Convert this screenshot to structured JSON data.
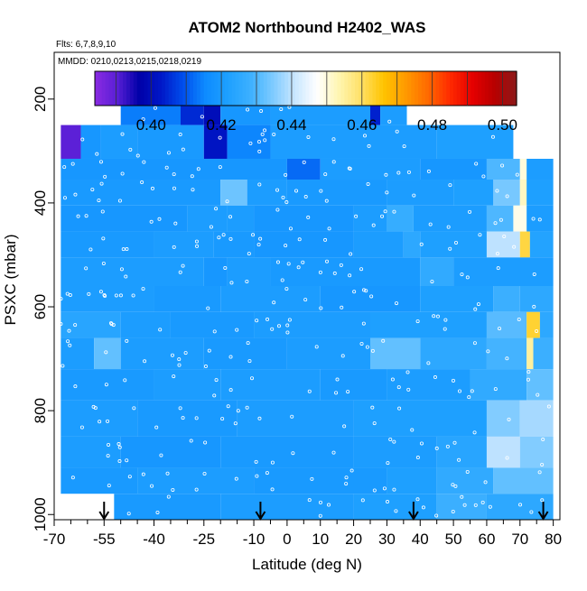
{
  "chart_data": {
    "type": "heatmap",
    "title": "ATOM2 Northbound H2402_WAS",
    "subtitle_flights": "Flts: 6,7,8,9,10",
    "subtitle_dates": "MMDD: 0210,0213,0215,0218,0219",
    "xlabel": "Latitude (deg N)",
    "ylabel": "PSXC (mbar)",
    "xlim": [
      -70,
      82
    ],
    "ylim": [
      1010,
      110
    ],
    "y_reversed": true,
    "x_ticks": [
      -70,
      -55,
      -40,
      -25,
      -10,
      0,
      10,
      20,
      30,
      40,
      50,
      60,
      70,
      80
    ],
    "x_minor_ticks": [
      -65,
      -60,
      -50,
      -45,
      -35,
      -30,
      -20,
      -15,
      -5,
      5,
      15,
      25,
      35,
      45,
      55,
      65,
      75
    ],
    "y_ticks": [
      200,
      400,
      600,
      800,
      1000
    ],
    "colorbar": {
      "min": 0.384,
      "max": 0.504,
      "ticks": [
        0.4,
        0.42,
        0.44,
        0.46,
        0.48,
        0.5
      ],
      "tick_labels": [
        "0.40",
        "0.42",
        "0.44",
        "0.46",
        "0.48",
        "0.50"
      ],
      "colors": [
        "#8a2be2",
        "#5a1fd6",
        "#0000a8",
        "#0018c8",
        "#0050ee",
        "#0e8cff",
        "#1ea0ff",
        "#3cb0ff",
        "#7ccaff",
        "#c8e6ff",
        "#ffffff",
        "#fff5b0",
        "#ffe066",
        "#ffc400",
        "#ff9a00",
        "#ff6a00",
        "#ff2a00",
        "#e60000",
        "#b80000",
        "#8b1a1a"
      ]
    },
    "arrows_latitude": [
      -55,
      -8,
      38,
      77
    ],
    "dominant_value": 0.42,
    "layers": [
      {
        "p": [
          160,
          190
        ],
        "segs": [
          [
            -7.5,
            -5.5,
            0.42
          ]
        ]
      },
      {
        "p": [
          190,
          250
        ],
        "segs": [
          [
            -50,
            -32,
            0.414
          ],
          [
            -32,
            -25,
            0.405
          ],
          [
            -25,
            -20,
            0.4
          ],
          [
            -20,
            -5,
            0.419
          ],
          [
            -5,
            25,
            0.421
          ],
          [
            25,
            28,
            0.404
          ],
          [
            28,
            36,
            0.421
          ]
        ]
      },
      {
        "p": [
          250,
          315
        ],
        "segs": [
          [
            -68,
            -62,
            0.39
          ],
          [
            -62,
            -56,
            0.419
          ],
          [
            -56,
            -45,
            0.421
          ],
          [
            -45,
            -25,
            0.42
          ],
          [
            -25,
            -18,
            0.402
          ],
          [
            -18,
            -5,
            0.415
          ],
          [
            -5,
            45,
            0.421
          ],
          [
            45,
            68,
            0.422
          ]
        ]
      },
      {
        "p": [
          315,
          355
        ],
        "segs": [
          [
            -68,
            0,
            0.419
          ],
          [
            0,
            10,
            0.412
          ],
          [
            10,
            40,
            0.421
          ],
          [
            40,
            60,
            0.419
          ],
          [
            60,
            70,
            0.43
          ],
          [
            70,
            72,
            0.45
          ],
          [
            72,
            80,
            0.421
          ]
        ]
      },
      {
        "p": [
          355,
          405
        ],
        "segs": [
          [
            -68,
            -20,
            0.42
          ],
          [
            -20,
            -12,
            0.433
          ],
          [
            -12,
            0,
            0.421
          ],
          [
            0,
            30,
            0.42
          ],
          [
            30,
            50,
            0.421
          ],
          [
            50,
            62,
            0.422
          ],
          [
            62,
            70,
            0.434
          ],
          [
            70,
            72,
            0.452
          ],
          [
            72,
            80,
            0.422
          ]
        ]
      },
      {
        "p": [
          405,
          455
        ],
        "segs": [
          [
            -68,
            -30,
            0.419
          ],
          [
            -30,
            -18,
            0.421
          ],
          [
            -18,
            -10,
            0.421
          ],
          [
            -10,
            20,
            0.419
          ],
          [
            20,
            30,
            0.421
          ],
          [
            30,
            38,
            0.427
          ],
          [
            38,
            60,
            0.421
          ],
          [
            60,
            68,
            0.43
          ],
          [
            68,
            72,
            0.449
          ],
          [
            72,
            80,
            0.421
          ]
        ]
      },
      {
        "p": [
          455,
          505
        ],
        "segs": [
          [
            -68,
            -40,
            0.42
          ],
          [
            -40,
            -22,
            0.421
          ],
          [
            -22,
            -10,
            0.42
          ],
          [
            -10,
            20,
            0.419
          ],
          [
            20,
            35,
            0.421
          ],
          [
            35,
            40,
            0.425
          ],
          [
            40,
            60,
            0.422
          ],
          [
            60,
            70,
            0.44
          ],
          [
            70,
            73,
            0.462
          ],
          [
            73,
            80,
            0.423
          ]
        ]
      },
      {
        "p": [
          505,
          560
        ],
        "segs": [
          [
            -68,
            -25,
            0.421
          ],
          [
            -25,
            -18,
            0.419
          ],
          [
            -18,
            -5,
            0.421
          ],
          [
            -5,
            40,
            0.42
          ],
          [
            40,
            50,
            0.426
          ],
          [
            50,
            80,
            0.421
          ]
        ]
      },
      {
        "p": [
          560,
          610
        ],
        "segs": [
          [
            -68,
            -40,
            0.421
          ],
          [
            -40,
            -20,
            0.42
          ],
          [
            -20,
            10,
            0.421
          ],
          [
            10,
            40,
            0.419
          ],
          [
            40,
            62,
            0.422
          ],
          [
            62,
            70,
            0.428
          ],
          [
            70,
            80,
            0.425
          ]
        ]
      },
      {
        "p": [
          610,
          660
        ],
        "segs": [
          [
            -68,
            -50,
            0.424
          ],
          [
            -50,
            -35,
            0.421
          ],
          [
            -35,
            -10,
            0.42
          ],
          [
            -10,
            25,
            0.421
          ],
          [
            25,
            60,
            0.422
          ],
          [
            60,
            72,
            0.431
          ],
          [
            72,
            76,
            0.463
          ],
          [
            76,
            80,
            0.425
          ]
        ]
      },
      {
        "p": [
          660,
          720
        ],
        "segs": [
          [
            -68,
            -58,
            0.421
          ],
          [
            -58,
            -50,
            0.432
          ],
          [
            -50,
            -25,
            0.421
          ],
          [
            -25,
            0,
            0.42
          ],
          [
            0,
            25,
            0.421
          ],
          [
            25,
            40,
            0.432
          ],
          [
            40,
            60,
            0.425
          ],
          [
            60,
            72,
            0.429
          ],
          [
            72,
            74,
            0.455
          ],
          [
            74,
            80,
            0.428
          ]
        ]
      },
      {
        "p": [
          720,
          780
        ],
        "segs": [
          [
            -68,
            -40,
            0.42
          ],
          [
            -40,
            -20,
            0.421
          ],
          [
            -20,
            10,
            0.421
          ],
          [
            10,
            30,
            0.42
          ],
          [
            30,
            55,
            0.421
          ],
          [
            55,
            72,
            0.426
          ],
          [
            72,
            80,
            0.432
          ]
        ]
      },
      {
        "p": [
          780,
          850
        ],
        "segs": [
          [
            -68,
            -45,
            0.421
          ],
          [
            -45,
            -15,
            0.42
          ],
          [
            -15,
            20,
            0.421
          ],
          [
            20,
            60,
            0.422
          ],
          [
            60,
            70,
            0.435
          ],
          [
            70,
            80,
            0.438
          ]
        ]
      },
      {
        "p": [
          850,
          910
        ],
        "segs": [
          [
            -68,
            -50,
            0.421
          ],
          [
            -50,
            -20,
            0.419
          ],
          [
            -20,
            20,
            0.42
          ],
          [
            20,
            45,
            0.421
          ],
          [
            45,
            60,
            0.424
          ],
          [
            60,
            70,
            0.44
          ],
          [
            70,
            80,
            0.435
          ]
        ]
      },
      {
        "p": [
          910,
          960
        ],
        "segs": [
          [
            -68,
            -45,
            0.42
          ],
          [
            -45,
            -10,
            0.421
          ],
          [
            -10,
            30,
            0.42
          ],
          [
            30,
            45,
            0.422
          ],
          [
            45,
            62,
            0.426
          ],
          [
            62,
            80,
            0.432
          ]
        ]
      },
      {
        "p": [
          960,
          1010
        ],
        "segs": [
          [
            -52,
            -20,
            0.42
          ],
          [
            -20,
            20,
            0.421
          ],
          [
            20,
            45,
            0.422
          ],
          [
            45,
            60,
            0.428
          ],
          [
            60,
            80,
            0.425
          ]
        ]
      }
    ]
  }
}
